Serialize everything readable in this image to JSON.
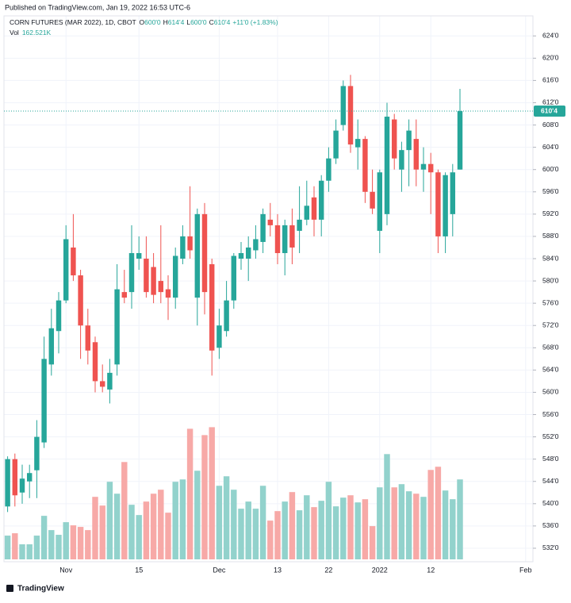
{
  "published": "Published on TradingView.com, Jan 19, 2022 16:53 UTC-6",
  "footer": "TradingView",
  "chart_data": {
    "type": "candlestick",
    "title": "CORN FUTURES (MAR 2022), 1D, CBOT",
    "legend": {
      "o_label": "O",
      "o": "600'0",
      "h_label": "H",
      "h": "614'4",
      "l_label": "L",
      "l": "600'0",
      "c_label": "C",
      "c": "610'4",
      "change": "+11'0 (+1.83%)",
      "vol_label": "Vol",
      "vol": "162.521K"
    },
    "up_color": "#26a69a",
    "down_color": "#ef5350",
    "vol_up_color": "#92d2cc",
    "vol_down_color": "#f7a9a7",
    "open": [
      539.5,
      548,
      542,
      544,
      546,
      551,
      565,
      571,
      576.5,
      586,
      581,
      572,
      569,
      562,
      560.5,
      565,
      578,
      578,
      584,
      584,
      582.5,
      580,
      578.5,
      577,
      584,
      588,
      577,
      592,
      583,
      568,
      571,
      576.5,
      584,
      584,
      585.5,
      587,
      591,
      590,
      585,
      590,
      589,
      591,
      595,
      591,
      598,
      602,
      608,
      615,
      604,
      605.5,
      596,
      589,
      592,
      609,
      600,
      603.5,
      605.5,
      600,
      601,
      599.5,
      588,
      592,
      600
    ],
    "high": [
      548.5,
      549,
      547,
      547,
      555,
      570,
      575,
      578,
      590,
      592,
      582,
      575,
      570,
      565,
      566,
      583,
      582,
      590,
      588,
      588,
      585,
      590,
      581,
      586,
      590,
      597,
      593,
      594,
      584,
      575,
      580,
      585,
      587,
      588,
      590,
      593,
      594,
      592,
      591,
      593,
      597,
      598,
      597,
      599,
      604,
      609,
      616,
      617,
      609,
      606,
      600,
      600,
      612,
      610,
      605,
      609,
      609,
      604,
      603,
      600,
      599.5,
      601,
      614.5
    ],
    "low": [
      538.5,
      539.5,
      540,
      541,
      541,
      550,
      563,
      567,
      576,
      580,
      566,
      565,
      560,
      560,
      558,
      563,
      576,
      575,
      582,
      577,
      576,
      576,
      573,
      575,
      583,
      584,
      572,
      574,
      563,
      566,
      570,
      575,
      582,
      580,
      584,
      585,
      588,
      583,
      581,
      583,
      585,
      590,
      588,
      588,
      596,
      601,
      607,
      603,
      600,
      594,
      592,
      585,
      590,
      600,
      596,
      597,
      597,
      596,
      592,
      585,
      585,
      588,
      600
    ],
    "close": [
      548,
      541.5,
      544.5,
      545.5,
      552,
      566,
      571.5,
      576.5,
      587.5,
      581,
      572,
      567.5,
      562,
      561,
      563.5,
      578.5,
      577,
      585,
      585,
      578,
      577.5,
      578,
      577,
      584.5,
      588,
      585.5,
      592,
      578,
      567.5,
      572,
      576.5,
      584.5,
      585,
      586,
      587.5,
      592,
      590,
      585,
      590,
      586,
      591,
      593.5,
      591,
      598,
      602,
      607,
      615,
      604.5,
      605.5,
      596,
      593,
      599.5,
      609.5,
      602,
      603.5,
      607,
      600,
      601,
      599.5,
      588,
      599,
      599.5,
      610.5
    ],
    "volume": [
      48.3,
      53.1,
      30.6,
      30.6,
      48.3,
      88.5,
      59.5,
      49.9,
      75.6,
      69.2,
      66.0,
      59.5,
      127.1,
      109.4,
      157.7,
      133.5,
      197.9,
      111.0,
      90.1,
      117.5,
      133.5,
      141.6,
      94.9,
      157.7,
      162.5,
      265.5,
      180.2,
      252.6,
      268.7,
      149.6,
      168.9,
      141.6,
      103.0,
      117.5,
      103.0,
      149.6,
      78.8,
      98.1,
      117.5,
      136.8,
      99.8,
      130.3,
      106.2,
      119.1,
      157.7,
      107.8,
      125.5,
      130.3,
      115.8,
      122.3,
      67.6,
      146.4,
      214.0,
      146.4,
      152.9,
      138.4,
      133.5,
      127.1,
      181.8,
      188.3,
      140.0,
      122.3,
      162.521
    ],
    "vol_ylim": [
      0,
      300
    ],
    "xlim": [
      -0.5,
      72
    ],
    "xticks": [
      {
        "value": 8,
        "label": "Nov"
      },
      {
        "value": 18,
        "label": "15"
      },
      {
        "value": 29,
        "label": "Dec"
      },
      {
        "value": 37,
        "label": "13"
      },
      {
        "value": 44,
        "label": "22"
      },
      {
        "value": 51,
        "label": "2022"
      },
      {
        "value": 58,
        "label": "12"
      },
      {
        "value": 71,
        "label": "Feb"
      }
    ],
    "ylim": [
      530,
      627.6
    ],
    "yticks": [
      {
        "value": 532,
        "label": "532'0"
      },
      {
        "value": 536,
        "label": "536'0"
      },
      {
        "value": 540,
        "label": "540'0"
      },
      {
        "value": 544,
        "label": "544'0"
      },
      {
        "value": 548,
        "label": "548'0"
      },
      {
        "value": 552,
        "label": "552'0"
      },
      {
        "value": 556,
        "label": "556'0"
      },
      {
        "value": 560,
        "label": "560'0"
      },
      {
        "value": 564,
        "label": "564'0"
      },
      {
        "value": 568,
        "label": "568'0"
      },
      {
        "value": 572,
        "label": "572'0"
      },
      {
        "value": 576,
        "label": "576'0"
      },
      {
        "value": 580,
        "label": "580'0"
      },
      {
        "value": 584,
        "label": "584'0"
      },
      {
        "value": 588,
        "label": "588'0"
      },
      {
        "value": 592,
        "label": "592'0"
      },
      {
        "value": 596,
        "label": "596'0"
      },
      {
        "value": 600,
        "label": "600'0"
      },
      {
        "value": 604,
        "label": "604'0"
      },
      {
        "value": 608,
        "label": "608'0"
      },
      {
        "value": 612,
        "label": "612'0"
      },
      {
        "value": 616,
        "label": "616'0"
      },
      {
        "value": 620,
        "label": "620'0"
      },
      {
        "value": 624,
        "label": "624'0"
      }
    ],
    "last_price": {
      "value": 610.5,
      "label": "610'4"
    },
    "grid": true
  }
}
